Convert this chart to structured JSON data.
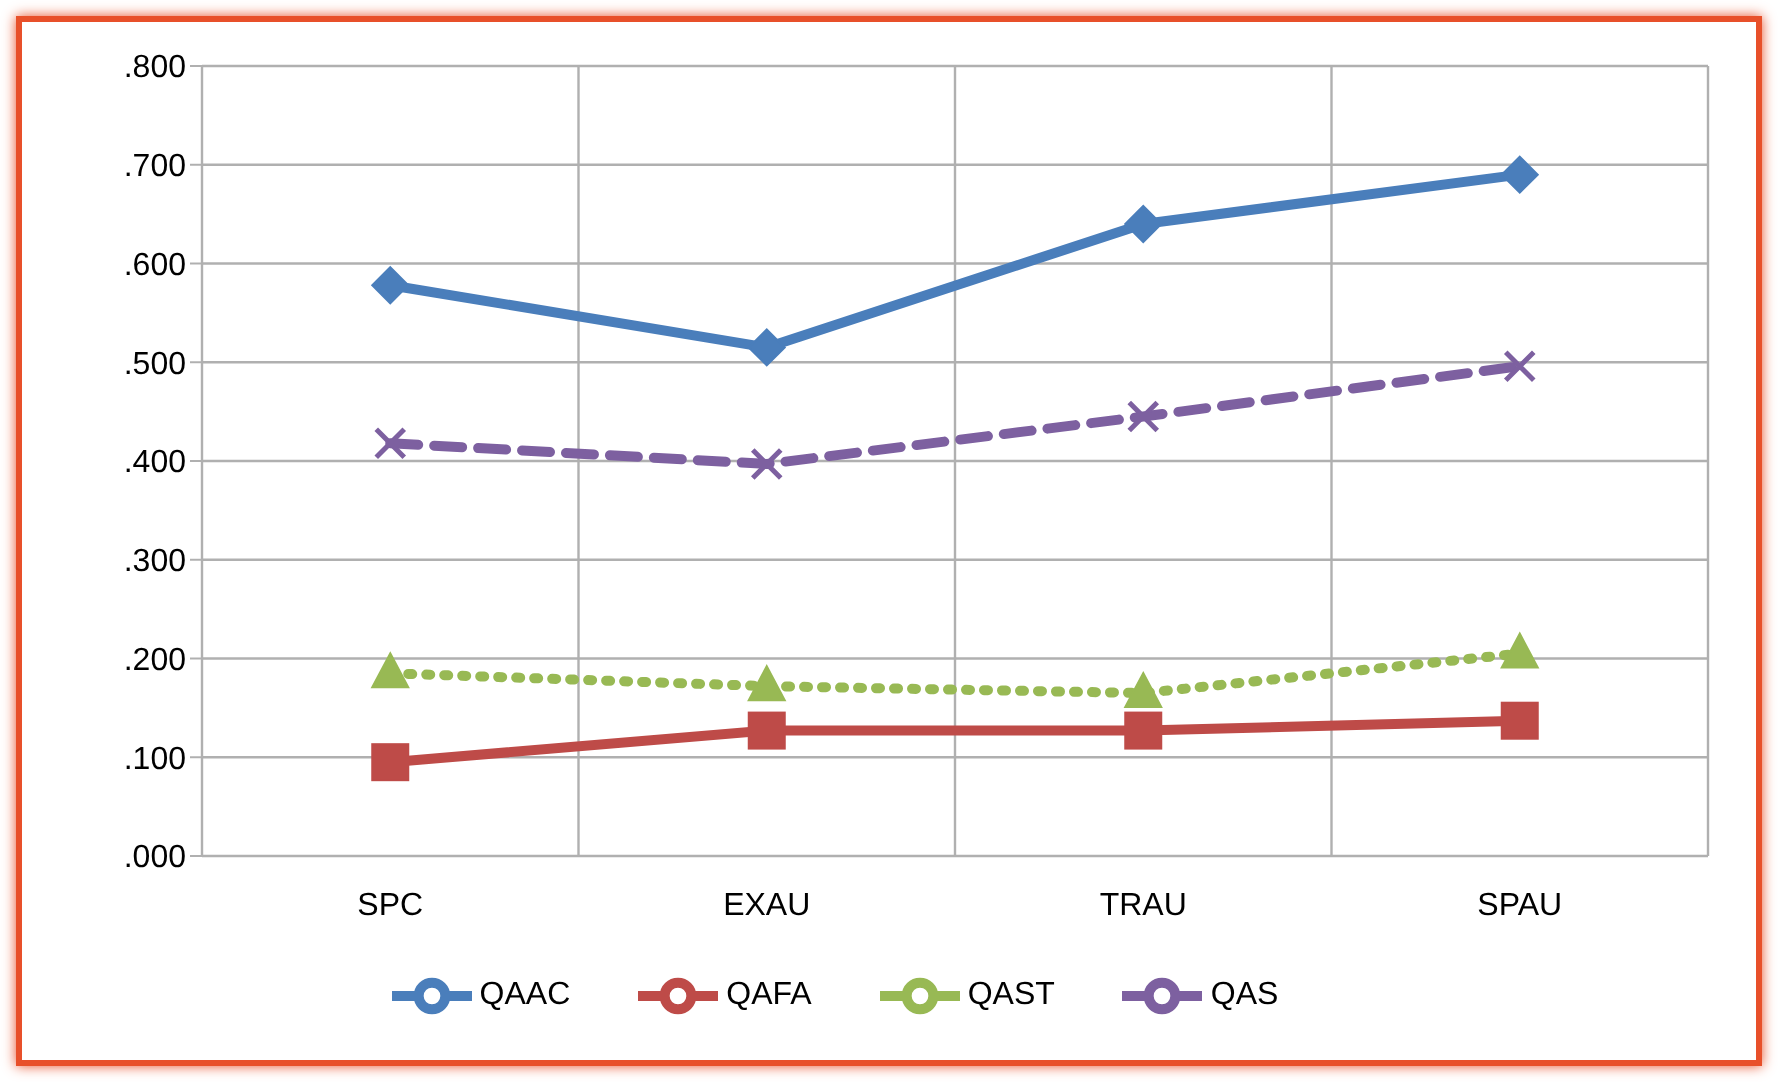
{
  "chart_data": {
    "type": "line",
    "categories": [
      "SPC",
      "EXAU",
      "TRAU",
      "SPAU"
    ],
    "series": [
      {
        "name": "QAAC",
        "color": "#4a7ebb",
        "values": [
          0.578,
          0.515,
          0.64,
          0.69
        ],
        "marker": "diamond",
        "line_style": "solid"
      },
      {
        "name": "QAFA",
        "color": "#be4b48",
        "values": [
          0.095,
          0.127,
          0.127,
          0.137
        ],
        "marker": "square",
        "line_style": "solid"
      },
      {
        "name": "QAST",
        "color": "#98b954",
        "values": [
          0.185,
          0.172,
          0.165,
          0.205
        ],
        "marker": "triangle",
        "line_style": "dotted"
      },
      {
        "name": "QAS",
        "color": "#7d60a0",
        "values": [
          0.418,
          0.397,
          0.445,
          0.496
        ],
        "marker": "cross",
        "line_style": "dashed"
      }
    ],
    "ylim": [
      0,
      0.8
    ],
    "yticks": [
      {
        "value": 0,
        "label": ".000"
      },
      {
        "value": 0.1,
        "label": ".100"
      },
      {
        "value": 0.2,
        "label": ".200"
      },
      {
        "value": 0.3,
        "label": ".300"
      },
      {
        "value": 0.4,
        "label": ".400"
      },
      {
        "value": 0.5,
        "label": ".500"
      },
      {
        "value": 0.6,
        "label": ".600"
      },
      {
        "value": 0.7,
        "label": ".700"
      },
      {
        "value": 0.8,
        "label": ".800"
      }
    ],
    "grid": true,
    "legend": "bottom"
  }
}
